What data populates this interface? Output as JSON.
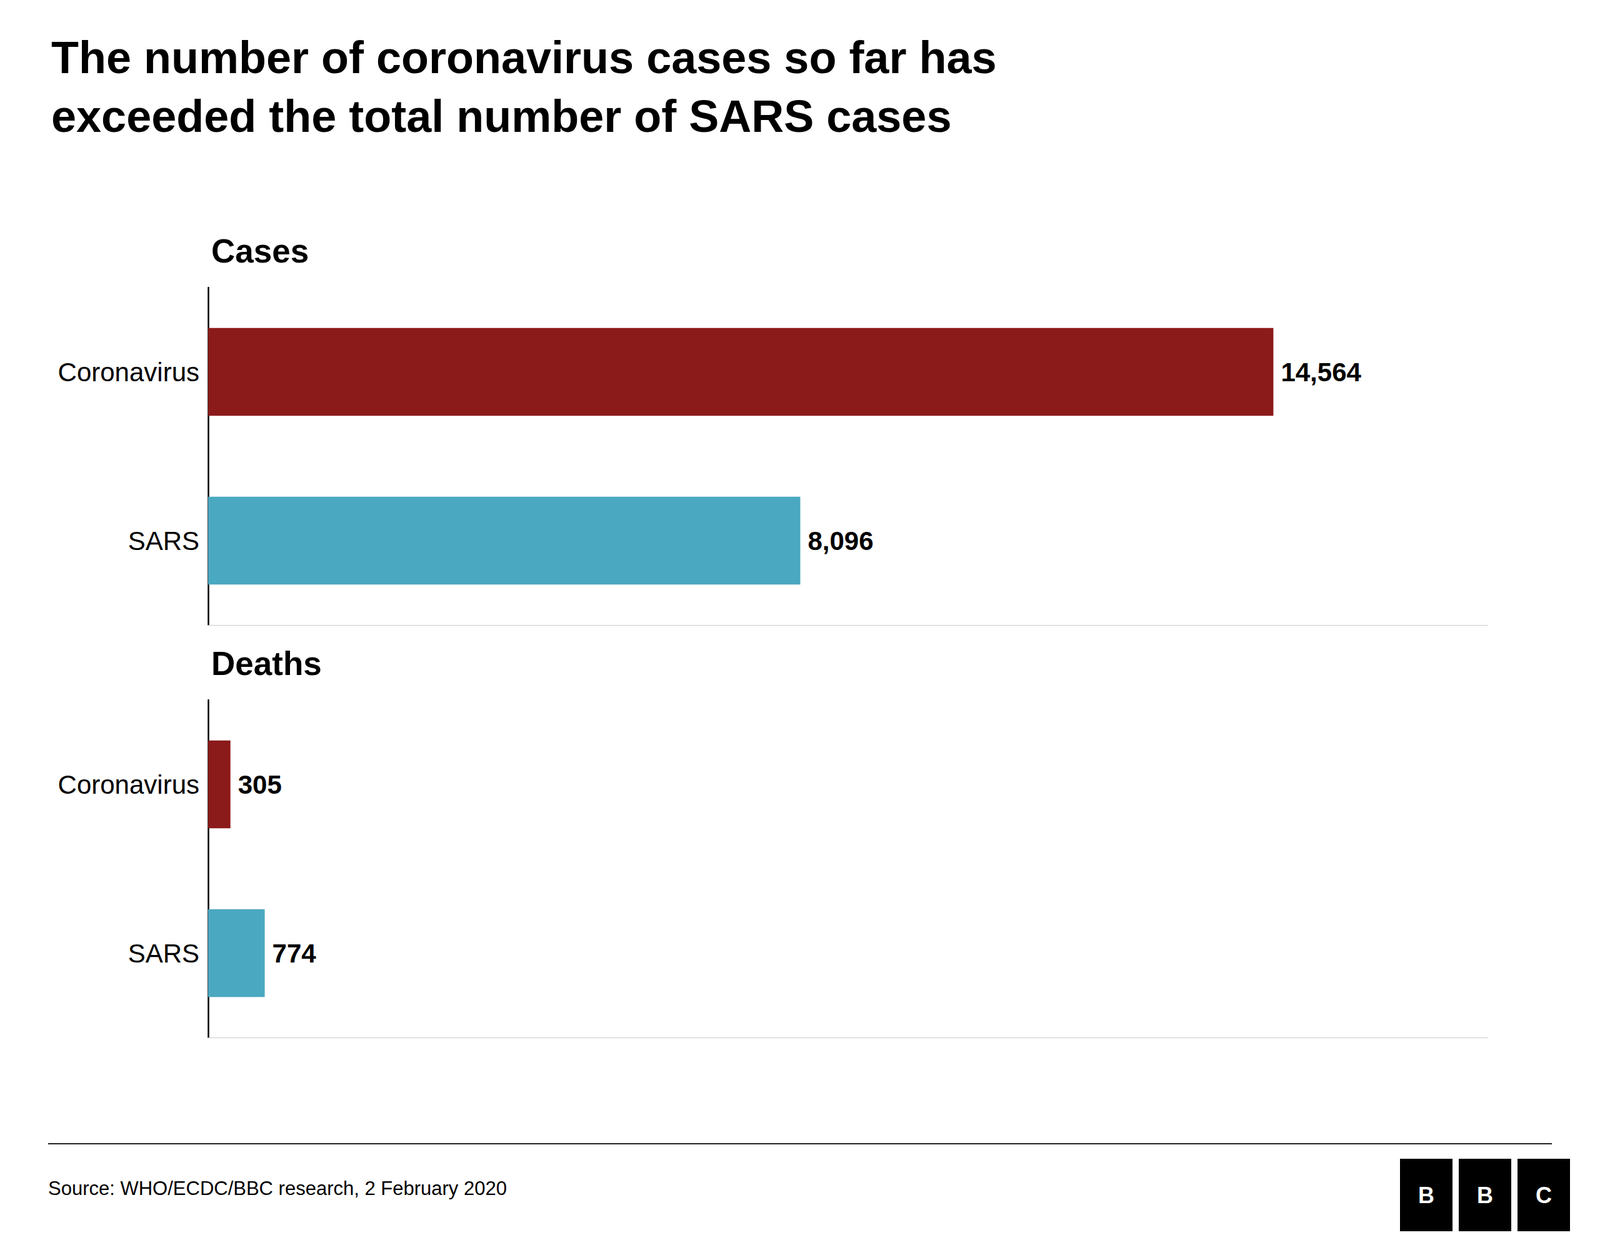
{
  "title": "The number of coronavirus cases so far has\nexceeded the total number of SARS cases",
  "annotations": [
    "Source: WHO/ECDC/BBC research, 2 February 2020",
    "BBC"
  ],
  "chart_data": [
    {
      "type": "bar",
      "orientation": "horizontal",
      "title": "Cases",
      "categories": [
        "Coronavirus",
        "SARS"
      ],
      "values": [
        14564,
        8096
      ],
      "value_labels": [
        "14,564",
        "8,096"
      ],
      "colors": [
        "#8B1A1A",
        "#4AA8C0"
      ],
      "xlim": [
        0,
        17500
      ],
      "tick_labels": "y",
      "data_labels": true,
      "grid": false
    },
    {
      "type": "bar",
      "orientation": "horizontal",
      "title": "Deaths",
      "categories": [
        "Coronavirus",
        "SARS"
      ],
      "values": [
        305,
        774
      ],
      "colors": [
        "#8B1A1A",
        "#4AA8C0"
      ],
      "xlim": [
        0,
        17500
      ],
      "tick_labels": "y",
      "data_labels": true,
      "grid": false
    }
  ]
}
